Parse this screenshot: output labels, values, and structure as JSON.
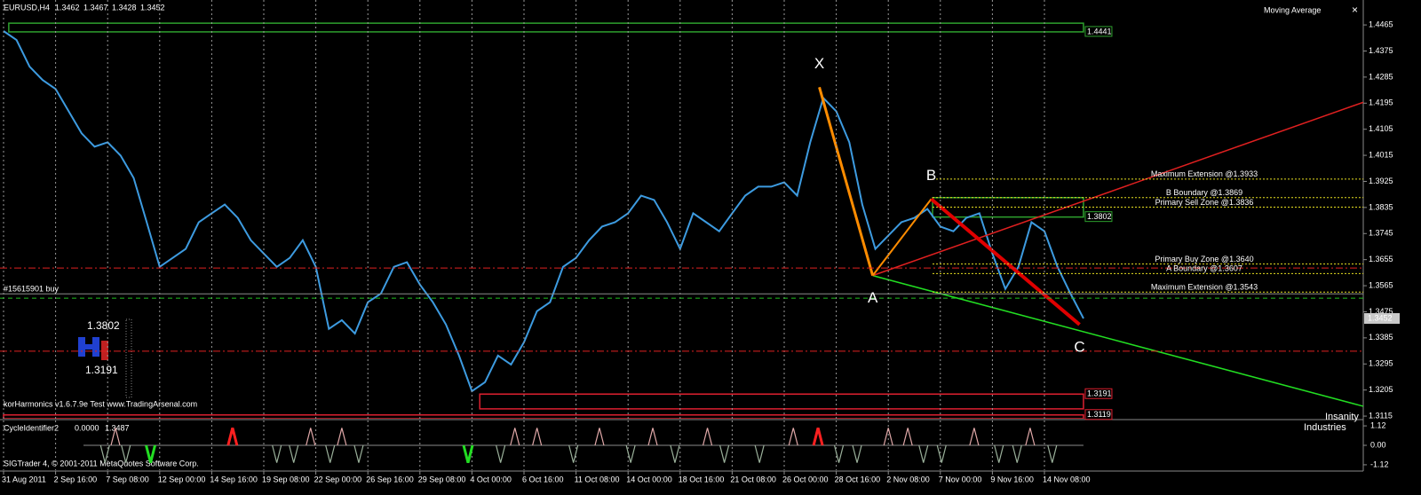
{
  "chart_data": [
    {
      "type": "line",
      "title": "EURUSD,H4",
      "quote": [
        1.3462,
        1.3467,
        1.3428,
        1.3452
      ],
      "indicator_name": "Moving Average",
      "close_button": "×",
      "categories": [
        "31 Aug 2011",
        null,
        null,
        null,
        "2 Sep 16:00",
        null,
        null,
        null,
        "7 Sep 08:00",
        null,
        null,
        null,
        "12 Sep 00:00",
        null,
        null,
        null,
        "14 Sep 16:00",
        null,
        null,
        null,
        "19 Sep 08:00",
        null,
        null,
        null,
        "22 Sep 00:00",
        null,
        null,
        null,
        "26 Sep 16:00",
        null,
        null,
        null,
        "29 Sep 08:00",
        null,
        null,
        null,
        "4 Oct 00:00",
        null,
        null,
        null,
        "6 Oct 16:00",
        null,
        null,
        null,
        "11 Oct 08:00",
        null,
        null,
        null,
        "14 Oct 00:00",
        null,
        null,
        null,
        "18 Oct 16:00",
        null,
        null,
        null,
        "21 Oct 08:00",
        null,
        null,
        null,
        "26 Oct 00:00",
        null,
        null,
        null,
        "28 Oct 16:00",
        null,
        null,
        null,
        "2 Nov 08:00",
        null,
        null,
        null,
        "7 Nov 00:00",
        null,
        null,
        null,
        "9 Nov 16:00",
        null,
        null,
        null,
        "14 Nov 08:00",
        null,
        null,
        null
      ],
      "values": [
        1.4444,
        1.4413,
        1.4321,
        1.4275,
        1.4244,
        1.4167,
        1.4091,
        1.4045,
        1.406,
        1.4014,
        1.3937,
        1.3784,
        1.363,
        1.3661,
        1.3692,
        1.3784,
        1.3815,
        1.3845,
        1.3799,
        1.3722,
        1.3676,
        1.363,
        1.3661,
        1.3722,
        1.363,
        1.3416,
        1.3446,
        1.34,
        1.3508,
        1.3538,
        1.363,
        1.3646,
        1.3569,
        1.3508,
        1.3431,
        1.3324,
        1.3201,
        1.3232,
        1.3324,
        1.3293,
        1.337,
        1.3477,
        1.3508,
        1.363,
        1.3661,
        1.3722,
        1.3769,
        1.3784,
        1.3815,
        1.3876,
        1.3861,
        1.3784,
        1.3692,
        1.3815,
        1.3784,
        1.3753,
        1.3815,
        1.3876,
        1.3907,
        1.3907,
        1.3922,
        1.3876,
        1.406,
        1.4213,
        1.4167,
        1.406,
        1.3845,
        1.3692,
        1.3738,
        1.3784,
        1.3799,
        1.383,
        1.3769,
        1.3753,
        1.3799,
        1.3815,
        1.3676,
        1.3554,
        1.363,
        1.3784,
        1.3753,
        1.363,
        1.3538,
        1.3452
      ],
      "color": "#3d9be0",
      "ylim": [
        1.3106,
        1.4551
      ],
      "yticks": [
        1.4465,
        1.4375,
        1.4285,
        1.4195,
        1.4105,
        1.4015,
        1.3925,
        1.3835,
        1.3745,
        1.3655,
        1.3565,
        1.3475,
        1.3385,
        1.3295,
        1.3205,
        1.3115
      ],
      "grid": true,
      "boxes": [
        {
          "value": 1.4441,
          "other": 1.4471,
          "x": [
            0.4,
            83
          ],
          "color": "#2ea02e"
        },
        {
          "value": 1.3802,
          "other": 1.3869,
          "x": [
            71.4,
            83
          ],
          "color": "#2ea02e"
        },
        {
          "value": 1.3191,
          "other": 1.314,
          "x": [
            36.6,
            83
          ],
          "color": "#dd2030"
        },
        {
          "value": 1.3119,
          "other": 1.3106,
          "x": [
            0,
            83
          ],
          "color": "#dd2030"
        }
      ],
      "levels": [
        {
          "label": "Maximum Extension @1.3933",
          "value": 1.3933
        },
        {
          "label": "B Boundary @1.3869",
          "value": 1.3869
        },
        {
          "label": "Primary Sell Zone @1.3836",
          "value": 1.3836
        },
        {
          "label": "Primary Buy Zone @1.3640",
          "value": 1.364
        },
        {
          "label": "A Boundary @1.3607",
          "value": 1.3607
        },
        {
          "label": "Maximum Extension @1.3543",
          "value": 1.3543
        }
      ],
      "level_color": "#e8e020",
      "level_start": 71.4,
      "lines": [
        {
          "value": 1.3626,
          "color": "#e02020",
          "style": "dashdot"
        },
        {
          "value": 1.3339,
          "color": "#e02020",
          "style": "dashdot"
        },
        {
          "value": 1.3522,
          "color": "#20c020",
          "style": "dashed"
        }
      ],
      "order": {
        "label": "#15615901 buy",
        "value": 1.3537
      },
      "pattern": {
        "labels": [
          "X",
          "A",
          "B",
          "C"
        ],
        "x": [
          62.7,
          66.8,
          71.3,
          82.7
        ],
        "values": [
          1.425,
          1.36,
          1.3864,
          1.3431
        ]
      },
      "trendlines": [
        {
          "x": [
            66.8,
            104.5
          ],
          "values": [
            1.36,
            1.3149
          ],
          "color": "#22dd22"
        },
        {
          "x": [
            66.8,
            104.5
          ],
          "values": [
            1.36,
            1.4198
          ],
          "color": "#e02020"
        }
      ],
      "annotations": {
        "indicator": "korHarmonics v1.6.7.9e Test www.TradingArsenal.com",
        "watermark": [
          "Insanity",
          "Industries"
        ]
      }
    },
    {
      "type": "signals",
      "title": "CycleIdentifier2",
      "readout": [
        {
          "value": 0,
          "label": "0.0000"
        },
        1.3487
      ],
      "ylim": [
        -1.43,
        1.43
      ],
      "yticks": [
        1.12,
        {
          "value": 0,
          "label": "0.00"
        },
        -1.12
      ],
      "signals": {
        "x": [
          7.8,
          8.6,
          9.4,
          11.3,
          17.6,
          21.0,
          22.3,
          23.6,
          25.1,
          26.0,
          27.3,
          35.7,
          38.2,
          39.3,
          41.0,
          43.8,
          45.8,
          48.2,
          49.9,
          51.6,
          54.1,
          55.4,
          58.1,
          60.7,
          62.6,
          64.2,
          65.6,
          68.0,
          69.5,
          70.7,
          72.1,
          74.6,
          76.5,
          77.9,
          78.9,
          80.6
        ],
        "values": [
          -1,
          1,
          -1,
          -1,
          1,
          -1,
          -1,
          1,
          -1,
          1,
          -1,
          -1,
          -1,
          1,
          1,
          -1,
          1,
          -1,
          1,
          -1,
          1,
          -1,
          -1,
          1,
          1,
          -1,
          -1,
          1,
          1,
          -1,
          -1,
          1,
          -1,
          -1,
          1,
          -1
        ],
        "colors": [
          "#9ab09a",
          "#e0a8a8",
          "#9ab09a",
          "#22dd22",
          "#ff2020",
          "#9ab09a",
          "#9ab09a",
          "#e0a8a8",
          "#9ab09a",
          "#e0a8a8",
          "#9ab09a",
          "#22dd22",
          "#9ab09a",
          "#e0a8a8",
          "#e0a8a8",
          "#9ab09a",
          "#e0a8a8",
          "#9ab09a",
          "#e0a8a8",
          "#9ab09a",
          "#e0a8a8",
          "#9ab09a",
          "#9ab09a",
          "#e0a8a8",
          "#ff2020",
          "#9ab09a",
          "#9ab09a",
          "#e0a8a8",
          "#e0a8a8",
          "#9ab09a",
          "#9ab09a",
          "#e0a8a8",
          "#9ab09a",
          "#9ab09a",
          "#e0a8a8",
          "#9ab09a"
        ]
      },
      "footer": "SIGTrader 4, © 2001-2011 MetaQuotes Software Corp."
    }
  ]
}
